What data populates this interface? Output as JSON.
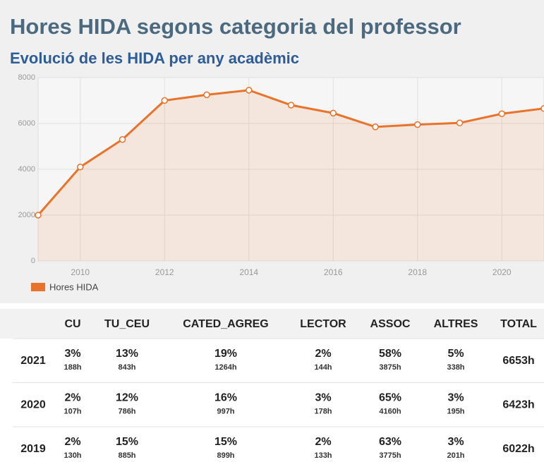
{
  "header": {
    "title": "Hores HIDA segons categoria del professor"
  },
  "chart_data": {
    "type": "line",
    "title": "Evolució de les HIDA per any acadèmic",
    "x": [
      2009,
      2010,
      2011,
      2012,
      2013,
      2014,
      2015,
      2016,
      2017,
      2018,
      2019,
      2020,
      2021
    ],
    "series": [
      {
        "name": "Hores HIDA",
        "color": "#e8732a",
        "values": [
          2000,
          4100,
          5300,
          7000,
          7250,
          7450,
          6800,
          6450,
          5850,
          5950,
          6022,
          6423,
          6653
        ]
      }
    ],
    "xlim": [
      2009,
      2021
    ],
    "xticks": [
      2010,
      2012,
      2014,
      2016,
      2018,
      2020
    ],
    "ylim": [
      0,
      8000
    ],
    "yticks": [
      0,
      2000,
      4000,
      6000,
      8000
    ],
    "grid": true,
    "legend": "bottom-left"
  },
  "table": {
    "columns": [
      "CU",
      "TU_CEU",
      "CATED_AGREG",
      "LECTOR",
      "ASSOC",
      "ALTRES",
      "TOTAL"
    ],
    "rows": [
      {
        "year": "2021",
        "cells": [
          {
            "pct": "3%",
            "hours": "188h"
          },
          {
            "pct": "13%",
            "hours": "843h"
          },
          {
            "pct": "19%",
            "hours": "1264h"
          },
          {
            "pct": "2%",
            "hours": "144h"
          },
          {
            "pct": "58%",
            "hours": "3875h"
          },
          {
            "pct": "5%",
            "hours": "338h"
          }
        ],
        "total": "6653h"
      },
      {
        "year": "2020",
        "cells": [
          {
            "pct": "2%",
            "hours": "107h"
          },
          {
            "pct": "12%",
            "hours": "786h"
          },
          {
            "pct": "16%",
            "hours": "997h"
          },
          {
            "pct": "3%",
            "hours": "178h"
          },
          {
            "pct": "65%",
            "hours": "4160h"
          },
          {
            "pct": "3%",
            "hours": "195h"
          }
        ],
        "total": "6423h"
      },
      {
        "year": "2019",
        "cells": [
          {
            "pct": "2%",
            "hours": "130h"
          },
          {
            "pct": "15%",
            "hours": "885h"
          },
          {
            "pct": "15%",
            "hours": "899h"
          },
          {
            "pct": "2%",
            "hours": "133h"
          },
          {
            "pct": "63%",
            "hours": "3775h"
          },
          {
            "pct": "3%",
            "hours": "201h"
          }
        ],
        "total": "6022h"
      }
    ]
  }
}
